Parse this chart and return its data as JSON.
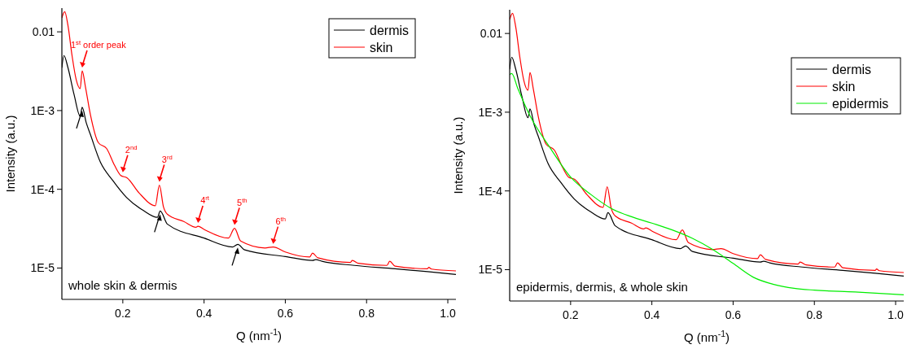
{
  "chart_data": [
    {
      "type": "line",
      "xlabel": "Q (nm$^{-1}$)",
      "ylabel": "Intensity (a.u.)",
      "log": "y",
      "grid": false,
      "legend": "top right",
      "xlim": [
        0.05,
        1.02
      ],
      "ylim": [
        4e-06,
        0.02
      ],
      "xticks": [
        0.2,
        0.4,
        0.6,
        0.8,
        {
          "value": 1.0,
          "label": "1.0"
        }
      ],
      "yticks": [
        {
          "value": 1e-05,
          "label": "1E-5"
        },
        {
          "value": 0.0001,
          "label": "1E-4"
        },
        {
          "value": 0.001,
          "label": "1E-3"
        },
        0.01
      ],
      "series": [
        {
          "name": "dermis",
          "color": "#000000",
          "x": [
            0.05,
            0.055,
            0.065,
            0.08,
            0.095,
            0.1,
            0.11,
            0.12,
            0.145,
            0.175,
            0.209,
            0.25,
            0.285,
            0.292,
            0.31,
            0.4,
            0.47,
            0.483,
            0.5,
            0.6,
            0.667,
            0.675,
            0.69,
            0.77,
            0.87,
            0.95,
            1.02
          ],
          "values": [
            0.0035,
            0.005,
            0.0035,
            0.0016,
            0.00085,
            0.0011,
            0.0007,
            0.0005,
            0.00022,
            0.00013,
            7.9e-05,
            5.4e-05,
            4.4e-05,
            5.3e-05,
            3.6e-05,
            2.4e-05,
            1.85e-05,
            2e-05,
            1.7e-05,
            1.4e-05,
            1.25e-05,
            1.28e-05,
            1.22e-05,
            1.08e-05,
            9.8e-06,
            9e-06,
            8.3e-06
          ]
        },
        {
          "name": "skin",
          "color": "#ff0000",
          "x": [
            0.05,
            0.057,
            0.065,
            0.075,
            0.085,
            0.095,
            0.1,
            0.108,
            0.12,
            0.14,
            0.16,
            0.18,
            0.195,
            0.21,
            0.24,
            0.28,
            0.29,
            0.3,
            0.31,
            0.35,
            0.38,
            0.385,
            0.4,
            0.46,
            0.475,
            0.49,
            0.55,
            0.57,
            0.6,
            0.66,
            0.667,
            0.68,
            0.76,
            0.765,
            0.78,
            0.85,
            0.857,
            0.87,
            0.95,
            0.953,
            0.96,
            1.02
          ],
          "values": [
            0.015,
            0.018,
            0.012,
            0.005,
            0.0025,
            0.0019,
            0.0032,
            0.002,
            0.0009,
            0.00039,
            0.00033,
            0.0002,
            0.00015,
            0.00014,
            9e-05,
            6.2e-05,
            0.000113,
            6e-05,
            4.8e-05,
            3.9e-05,
            3.3e-05,
            3.4e-05,
            3.1e-05,
            2.4e-05,
            3.2e-05,
            2.2e-05,
            1.8e-05,
            1.85e-05,
            1.6e-05,
            1.38e-05,
            1.55e-05,
            1.35e-05,
            1.18e-05,
            1.25e-05,
            1.15e-05,
            1.08e-05,
            1.22e-05,
            1.06e-05,
            9.8e-06,
            1.02e-05,
            9.7e-06,
            9.2e-06
          ]
        }
      ],
      "annotations": [
        {
          "text": "1$^{st}$ order peak",
          "x": 0.1,
          "y": 0.0032
        },
        {
          "text": "2$^{nd}$",
          "x": 0.2,
          "y": 0.00015
        },
        {
          "text": "3$^{rd}$",
          "x": 0.29,
          "y": 0.000113
        },
        {
          "text": "4$^{rt}$",
          "x": 0.385,
          "y": 3.4e-05
        },
        {
          "text": "5$^{th}$",
          "x": 0.475,
          "y": 3.2e-05
        },
        {
          "text": "6$^{th}$",
          "x": 0.57,
          "y": 1.85e-05
        },
        "whole skin & dermis"
      ]
    },
    {
      "type": "line",
      "xlabel": "Q (nm$^{-1}$)",
      "ylabel": "Intensity (a.u.)",
      "log": "y",
      "grid": false,
      "legend": "right",
      "xlim": [
        0.05,
        1.02
      ],
      "ylim": [
        4e-06,
        0.02
      ],
      "xticks": [
        0.2,
        0.4,
        0.6,
        0.8,
        {
          "value": 1.0,
          "label": "1.0"
        }
      ],
      "yticks": [
        {
          "value": 1e-05,
          "label": "1E-5"
        },
        {
          "value": 0.0001,
          "label": "1E-4"
        },
        {
          "value": 0.001,
          "label": "1E-3"
        },
        0.01
      ],
      "series": [
        {
          "name": "dermis",
          "color": "#000000",
          "x": [
            0.05,
            0.055,
            0.065,
            0.08,
            0.095,
            0.1,
            0.11,
            0.12,
            0.145,
            0.175,
            0.209,
            0.25,
            0.285,
            0.292,
            0.31,
            0.4,
            0.47,
            0.483,
            0.5,
            0.6,
            0.667,
            0.675,
            0.69,
            0.77,
            0.87,
            0.95,
            1.02
          ],
          "values": [
            0.0035,
            0.005,
            0.0035,
            0.0016,
            0.00085,
            0.0011,
            0.0007,
            0.0005,
            0.00022,
            0.00013,
            7.9e-05,
            5.4e-05,
            4.4e-05,
            5.3e-05,
            3.6e-05,
            2.4e-05,
            1.85e-05,
            2e-05,
            1.7e-05,
            1.4e-05,
            1.25e-05,
            1.28e-05,
            1.22e-05,
            1.08e-05,
            9.8e-06,
            9e-06,
            8.3e-06
          ]
        },
        {
          "name": "skin",
          "color": "#ff0000",
          "x": [
            0.05,
            0.057,
            0.065,
            0.075,
            0.085,
            0.095,
            0.1,
            0.108,
            0.12,
            0.14,
            0.16,
            0.18,
            0.195,
            0.21,
            0.24,
            0.28,
            0.29,
            0.3,
            0.31,
            0.35,
            0.38,
            0.385,
            0.4,
            0.46,
            0.475,
            0.49,
            0.55,
            0.57,
            0.6,
            0.66,
            0.667,
            0.68,
            0.76,
            0.765,
            0.78,
            0.85,
            0.857,
            0.87,
            0.95,
            0.953,
            0.96,
            1.02
          ],
          "values": [
            0.015,
            0.018,
            0.012,
            0.005,
            0.0025,
            0.0019,
            0.0032,
            0.002,
            0.0009,
            0.00039,
            0.00033,
            0.0002,
            0.00015,
            0.00014,
            9e-05,
            6.2e-05,
            0.000113,
            6e-05,
            4.8e-05,
            3.9e-05,
            3.3e-05,
            3.4e-05,
            3.1e-05,
            2.4e-05,
            3.2e-05,
            2.2e-05,
            1.8e-05,
            1.85e-05,
            1.6e-05,
            1.38e-05,
            1.55e-05,
            1.35e-05,
            1.18e-05,
            1.25e-05,
            1.15e-05,
            1.08e-05,
            1.22e-05,
            1.06e-05,
            9.8e-06,
            1.02e-05,
            9.7e-06,
            9.2e-06
          ]
        },
        {
          "name": "epidermis",
          "color": "#00ee00",
          "x": [
            0.05,
            0.055,
            0.07,
            0.1,
            0.15,
            0.2,
            0.25,
            0.3,
            0.35,
            0.4,
            0.45,
            0.5,
            0.55,
            0.6,
            0.65,
            0.7,
            0.75,
            0.8,
            0.9,
            1.02
          ],
          "values": [
            0.003,
            0.0031,
            0.002,
            0.0009,
            0.00035,
            0.00015,
            9e-05,
            6e-05,
            4.7e-05,
            3.9e-05,
            3.2e-05,
            2.5e-05,
            1.8e-05,
            1.2e-05,
            8e-06,
            6.5e-06,
            5.8e-06,
            5.5e-06,
            5.2e-06,
            4.8e-06
          ]
        }
      ],
      "annotations": [
        "epidermis, dermis, & whole skin"
      ]
    }
  ]
}
